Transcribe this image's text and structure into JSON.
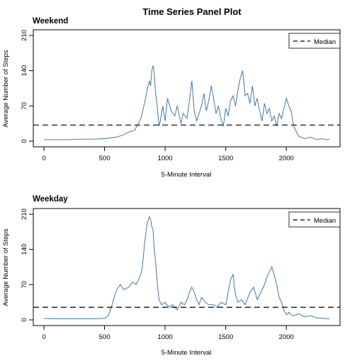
{
  "chart_title": "Time Series Panel Plot",
  "colors": {
    "series": "#2f6b9a",
    "median": "#000000",
    "frame": "#000000"
  },
  "chart_data": [
    {
      "type": "line",
      "title": "Weekend",
      "xlabel": "5-Minute Interval",
      "ylabel": "Average Number of Steps",
      "xlim": [
        0,
        2355
      ],
      "ylim": [
        0,
        210
      ],
      "xticks": [
        0,
        500,
        1000,
        1500,
        2000
      ],
      "yticks": [
        0,
        70,
        140,
        210
      ],
      "legend": {
        "position": "top-right",
        "entries": [
          "Median"
        ]
      },
      "median": 32,
      "series": [
        {
          "x": [
            0,
            100,
            200,
            300,
            400,
            500,
            600,
            650,
            700,
            750,
            800,
            830,
            850,
            870,
            880,
            890,
            900,
            910,
            920,
            930,
            950,
            960,
            970,
            980,
            990,
            1000,
            1020,
            1050,
            1080,
            1100,
            1130,
            1150,
            1180,
            1200,
            1220,
            1230,
            1240,
            1260,
            1280,
            1300,
            1320,
            1340,
            1360,
            1380,
            1400,
            1420,
            1440,
            1460,
            1480,
            1500,
            1520,
            1540,
            1560,
            1580,
            1600,
            1620,
            1640,
            1650,
            1660,
            1680,
            1700,
            1720,
            1740,
            1760,
            1780,
            1800,
            1820,
            1840,
            1860,
            1880,
            1900,
            1920,
            1940,
            1960,
            1980,
            2000,
            2020,
            2040,
            2060,
            2080,
            2100,
            2150,
            2200,
            2250,
            2300,
            2330,
            2355
          ],
          "values": [
            3,
            3,
            3,
            4,
            4,
            5,
            8,
            12,
            18,
            22,
            45,
            75,
            100,
            120,
            110,
            140,
            150,
            135,
            100,
            80,
            30,
            40,
            55,
            70,
            55,
            40,
            85,
            60,
            50,
            70,
            35,
            55,
            45,
            80,
            120,
            90,
            60,
            40,
            55,
            70,
            95,
            60,
            80,
            110,
            85,
            55,
            70,
            45,
            30,
            65,
            50,
            80,
            90,
            70,
            100,
            125,
            140,
            115,
            90,
            95,
            75,
            110,
            70,
            85,
            60,
            40,
            75,
            55,
            65,
            40,
            50,
            30,
            55,
            45,
            65,
            85,
            70,
            60,
            30,
            20,
            10,
            5,
            8,
            3,
            5,
            3,
            4
          ]
        }
      ]
    },
    {
      "type": "line",
      "title": "Weekday",
      "xlabel": "5-Minute Interval",
      "ylabel": "Average Number of Steps",
      "xlim": [
        0,
        2355
      ],
      "ylim": [
        0,
        210
      ],
      "xticks": [
        0,
        500,
        1000,
        1500,
        2000
      ],
      "yticks": [
        0,
        70,
        140,
        210
      ],
      "legend": {
        "position": "top-right",
        "entries": [
          "Median"
        ]
      },
      "median": 25,
      "series": [
        {
          "x": [
            0,
            100,
            200,
            300,
            400,
            500,
            530,
            550,
            580,
            600,
            630,
            660,
            700,
            730,
            760,
            790,
            810,
            830,
            850,
            870,
            880,
            890,
            900,
            910,
            920,
            930,
            940,
            950,
            970,
            1000,
            1030,
            1060,
            1100,
            1130,
            1160,
            1190,
            1200,
            1220,
            1240,
            1260,
            1280,
            1300,
            1330,
            1360,
            1400,
            1430,
            1460,
            1500,
            1520,
            1540,
            1560,
            1580,
            1600,
            1630,
            1660,
            1700,
            1730,
            1760,
            1790,
            1820,
            1840,
            1860,
            1880,
            1900,
            1920,
            1940,
            1960,
            1980,
            2000,
            2020,
            2050,
            2080,
            2100,
            2150,
            2200,
            2250,
            2300,
            2355
          ],
          "values": [
            3,
            2,
            2,
            2,
            2,
            3,
            8,
            20,
            45,
            60,
            70,
            60,
            65,
            75,
            70,
            85,
            100,
            150,
            190,
            205,
            200,
            185,
            180,
            140,
            120,
            90,
            60,
            40,
            30,
            35,
            25,
            30,
            20,
            35,
            30,
            45,
            55,
            65,
            55,
            40,
            30,
            45,
            35,
            30,
            30,
            25,
            35,
            30,
            55,
            80,
            90,
            50,
            35,
            40,
            30,
            55,
            65,
            40,
            55,
            70,
            85,
            95,
            105,
            90,
            70,
            45,
            35,
            20,
            10,
            15,
            8,
            10,
            12,
            6,
            8,
            4,
            3,
            2
          ]
        }
      ]
    }
  ]
}
